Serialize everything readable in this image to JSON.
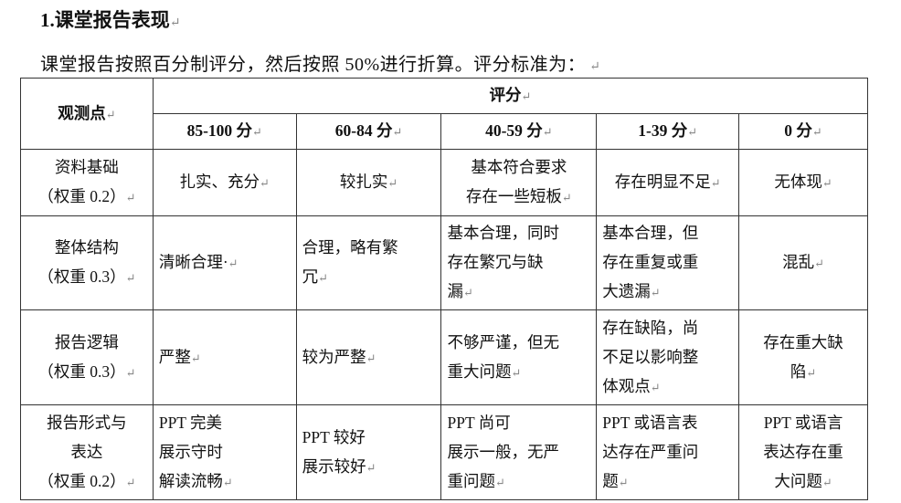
{
  "heading": "1.课堂报告表现",
  "intro": "课堂报告按照百分制评分，然后按照 50%进行折算。评分标准为：",
  "table": {
    "corner": "观测点",
    "group_header": "评分",
    "columns": [
      "85-100 分",
      "60-84 分",
      "40-59 分",
      "1-39 分",
      "0 分"
    ],
    "rows": [
      {
        "cells": [
          "资料基础\n（权重 0.2）",
          "扎实、充分",
          "较扎实",
          "基本符合要求\n存在一些短板",
          "存在明显不足",
          "无体现"
        ]
      },
      {
        "cells": [
          "整体结构\n（权重 0.3）",
          "清晰合理·",
          "合理，略有繁\n冗",
          "基本合理，同时\n存在繁冗与缺\n漏",
          "基本合理，但\n存在重复或重\n大遗漏",
          "混乱"
        ]
      },
      {
        "cells": [
          "报告逻辑\n（权重 0.3）",
          "严整",
          "较为严整",
          "不够严谨，但无\n重大问题",
          "存在缺陷，尚\n不足以影响整\n体观点",
          "存在重大缺\n陷"
        ]
      },
      {
        "cells": [
          "报告形式与\n表达\n（权重 0.2）",
          "PPT 完美\n展示守时\n解读流畅",
          "PPT 较好\n展示较好",
          "PPT 尚可\n展示一般，无严\n重问题",
          "PPT 或语言表\n达存在严重问\n题",
          "PPT 或语言\n表达存在重\n大问题"
        ]
      }
    ]
  }
}
